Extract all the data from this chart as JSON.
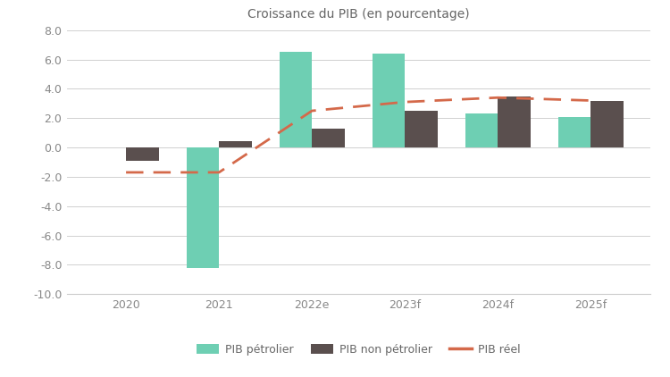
{
  "title": "Croissance du PIB (en pourcentage)",
  "categories": [
    "2020",
    "2021",
    "2022e",
    "2023f",
    "2024f",
    "2025f"
  ],
  "pib_petrolier": [
    0.0,
    -8.2,
    6.5,
    6.4,
    2.3,
    2.1
  ],
  "pib_non_petrolier": [
    -0.9,
    0.4,
    1.3,
    2.5,
    3.5,
    3.2
  ],
  "pib_reel": [
    -1.7,
    -1.7,
    2.5,
    3.1,
    3.4,
    3.2
  ],
  "bar_color_petrolier": "#6ecfb3",
  "bar_color_non_petrolier": "#5a4f4e",
  "line_color_reel": "#d4694a",
  "background_color": "#ffffff",
  "plot_bg_color": "#ffffff",
  "grid_color": "#d0d0d0",
  "ylim": [
    -10.0,
    8.0
  ],
  "yticks": [
    -10.0,
    -8.0,
    -6.0,
    -4.0,
    -2.0,
    0.0,
    2.0,
    4.0,
    6.0,
    8.0
  ],
  "legend_labels": [
    "PIB pétrolier",
    "PIB non pétrolier",
    "PIB réel"
  ],
  "bar_width": 0.35,
  "title_fontsize": 10,
  "tick_fontsize": 9,
  "legend_fontsize": 9
}
